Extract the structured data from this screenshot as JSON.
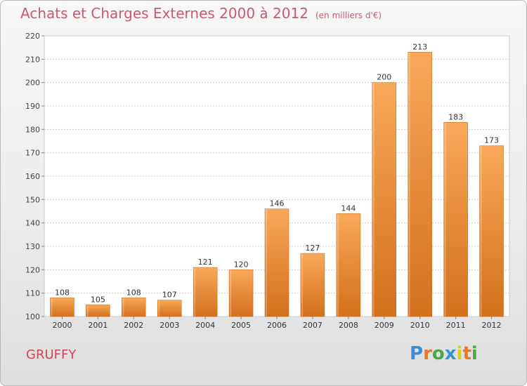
{
  "title": "Achats et Charges Externes 2000 à 2012",
  "subtitle": "(en milliers d'€)",
  "location": "GRUFFY",
  "logo": {
    "text": "Proxiti",
    "colors": [
      "#3a8fd6",
      "#e8792b",
      "#4aa84a",
      "#3a8fd6",
      "#d6d21e",
      "#e8792b",
      "#4aa84a"
    ]
  },
  "chart_data": {
    "type": "bar",
    "categories": [
      "2000",
      "2001",
      "2002",
      "2003",
      "2004",
      "2005",
      "2006",
      "2007",
      "2008",
      "2009",
      "2010",
      "2011",
      "2012"
    ],
    "values": [
      108,
      105,
      108,
      107,
      121,
      120,
      146,
      127,
      144,
      200,
      213,
      183,
      173
    ],
    "ylim": [
      100,
      220
    ],
    "yticks": [
      100,
      110,
      120,
      130,
      140,
      150,
      160,
      170,
      180,
      190,
      200,
      210,
      220
    ],
    "grid": true,
    "bar_color": "#f0933a"
  }
}
